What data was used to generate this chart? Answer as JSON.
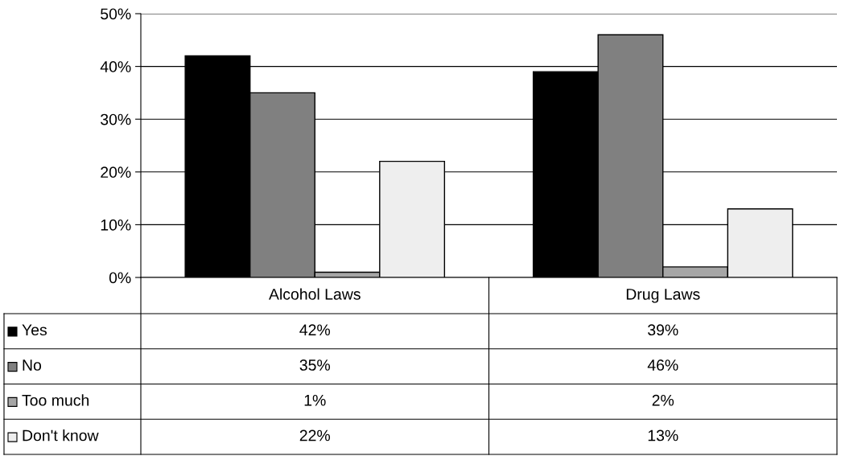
{
  "chart_data": {
    "type": "bar",
    "categories": [
      "Alcohol Laws",
      "Drug Laws"
    ],
    "series": [
      {
        "name": "Yes",
        "color": "#000000",
        "values": [
          42,
          39
        ],
        "value_labels": [
          "42%",
          "39%"
        ]
      },
      {
        "name": "No",
        "color": "#808080",
        "values": [
          35,
          46
        ],
        "value_labels": [
          "35%",
          "46%"
        ]
      },
      {
        "name": "Too much",
        "color": "#a6a6a6",
        "values": [
          1,
          2
        ],
        "value_labels": [
          "1%",
          "2%"
        ]
      },
      {
        "name": "Don't know",
        "color": "#eeeeee",
        "values": [
          22,
          13
        ],
        "value_labels": [
          "22%",
          "13%"
        ]
      }
    ],
    "ylim": [
      0,
      50
    ],
    "yticks": [
      {
        "value": 0,
        "label": "0%"
      },
      {
        "value": 10,
        "label": "10%"
      },
      {
        "value": 20,
        "label": "20%"
      },
      {
        "value": 30,
        "label": "30%"
      },
      {
        "value": 40,
        "label": "40%"
      },
      {
        "value": 50,
        "label": "50%"
      }
    ],
    "grid": "y",
    "legend": "bottom left"
  }
}
